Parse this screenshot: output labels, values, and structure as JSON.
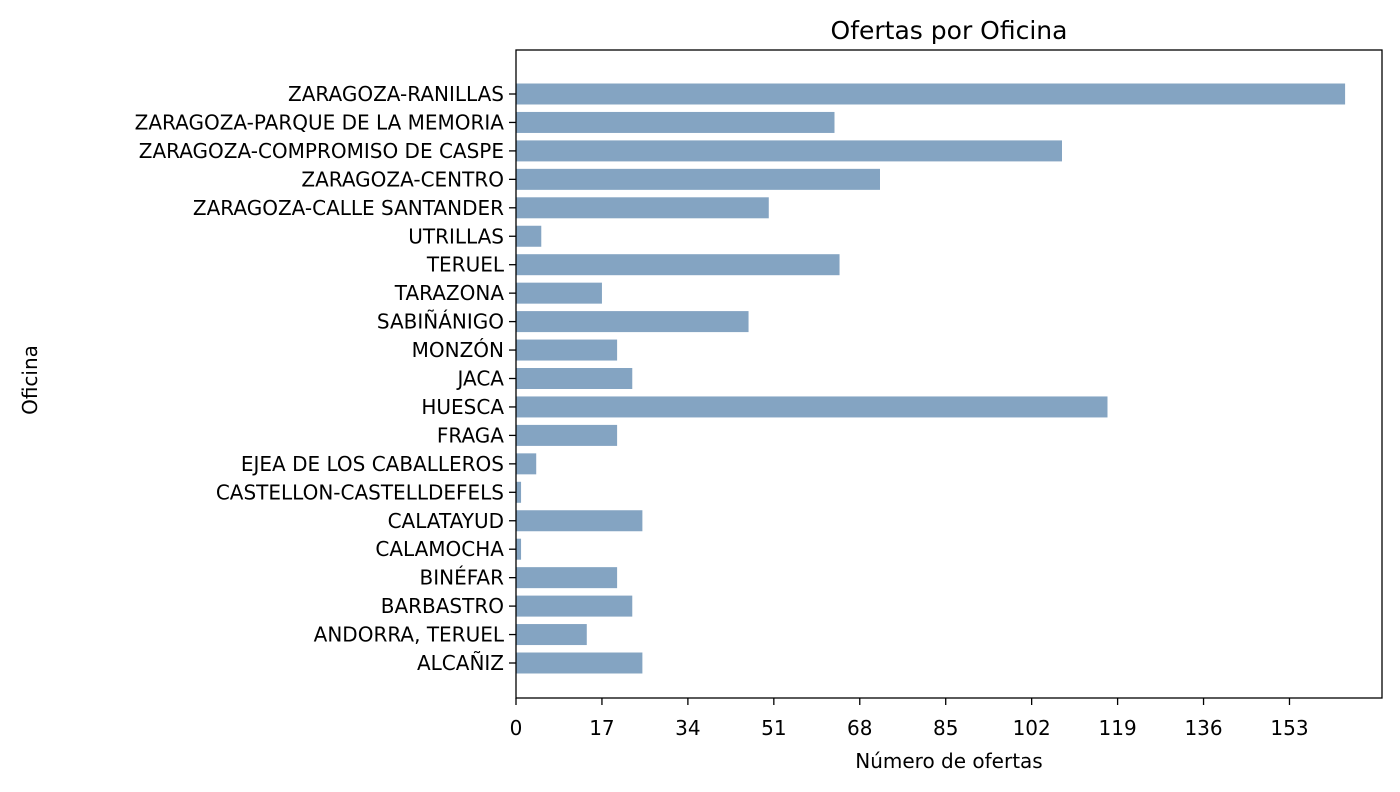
{
  "chart_data": {
    "type": "bar",
    "orientation": "horizontal",
    "title": "Ofertas por Oficina",
    "xlabel": "Número de ofertas",
    "ylabel": "Oficina",
    "xlim": [
      0,
      171.3
    ],
    "xticks": [
      0,
      17,
      34,
      51,
      68,
      85,
      102,
      119,
      136,
      153
    ],
    "bar_color": "#84a4c2",
    "grid": false,
    "categories": [
      "ZARAGOZA-RANILLAS",
      "ZARAGOZA-PARQUE DE LA MEMORIA",
      "ZARAGOZA-COMPROMISO DE CASPE",
      "ZARAGOZA-CENTRO",
      "ZARAGOZA-CALLE SANTANDER",
      "UTRILLAS",
      "TERUEL",
      "TARAZONA",
      "SABIÑÁNIGO",
      "MONZÓN",
      "JACA",
      "HUESCA",
      "FRAGA",
      "EJEA DE LOS CABALLEROS",
      "CASTELLON-CASTELLDEFELS",
      "CALATAYUD",
      "CALAMOCHA",
      "BINÉFAR",
      "BARBASTRO",
      "ANDORRA, TERUEL",
      "ALCAÑIZ"
    ],
    "values": [
      164,
      63,
      108,
      72,
      50,
      5,
      64,
      17,
      46,
      20,
      23,
      117,
      20,
      4,
      1,
      25,
      1,
      20,
      23,
      14,
      25
    ]
  }
}
